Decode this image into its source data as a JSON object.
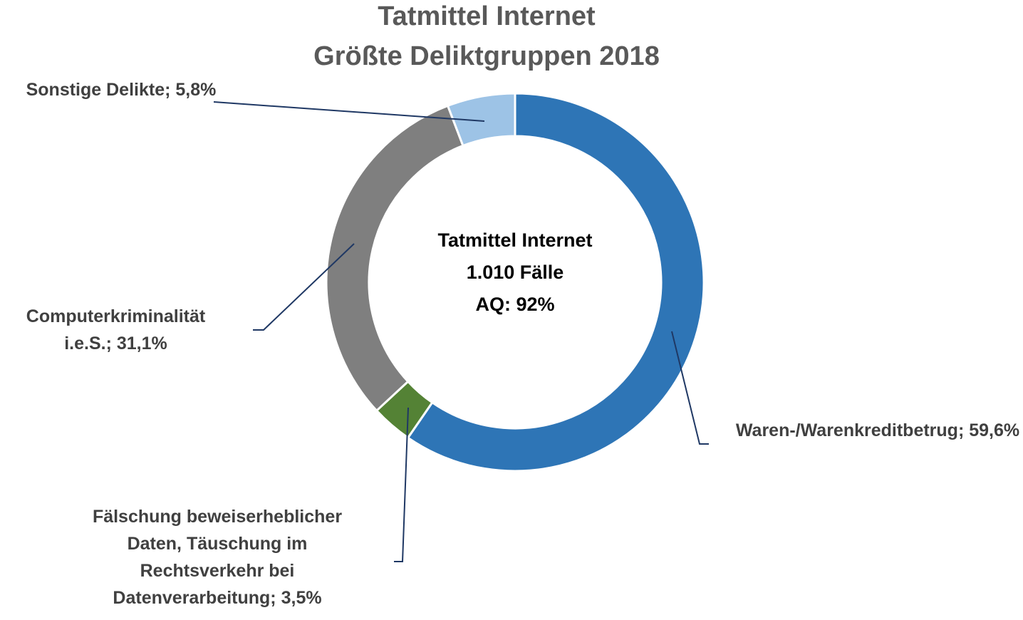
{
  "chart_data": {
    "type": "donut",
    "title": "Tatmittel Internet",
    "subtitle": "Größte Deliktgruppen 2018",
    "center_text": [
      "Tatmittel Internet",
      "1.010 Fälle",
      "AQ: 92%"
    ],
    "categories": [
      "Waren-/Warenkreditbetrug;",
      "Fälschung beweiserheblicher\nDaten, Täuschung im\nRechtsverkehr bei\nDatenverarbeitung;",
      "Computerkriminalität i.e.S.;",
      "Sonstige Delikte;"
    ],
    "values": [
      59.6,
      3.5,
      31.1,
      5.8
    ],
    "value_labels": [
      "59,6%",
      "3,5%",
      "31,1%",
      "5,8%"
    ],
    "colors": [
      "#2e75b6",
      "#548235",
      "#7f7f7f",
      "#9dc3e6"
    ]
  }
}
